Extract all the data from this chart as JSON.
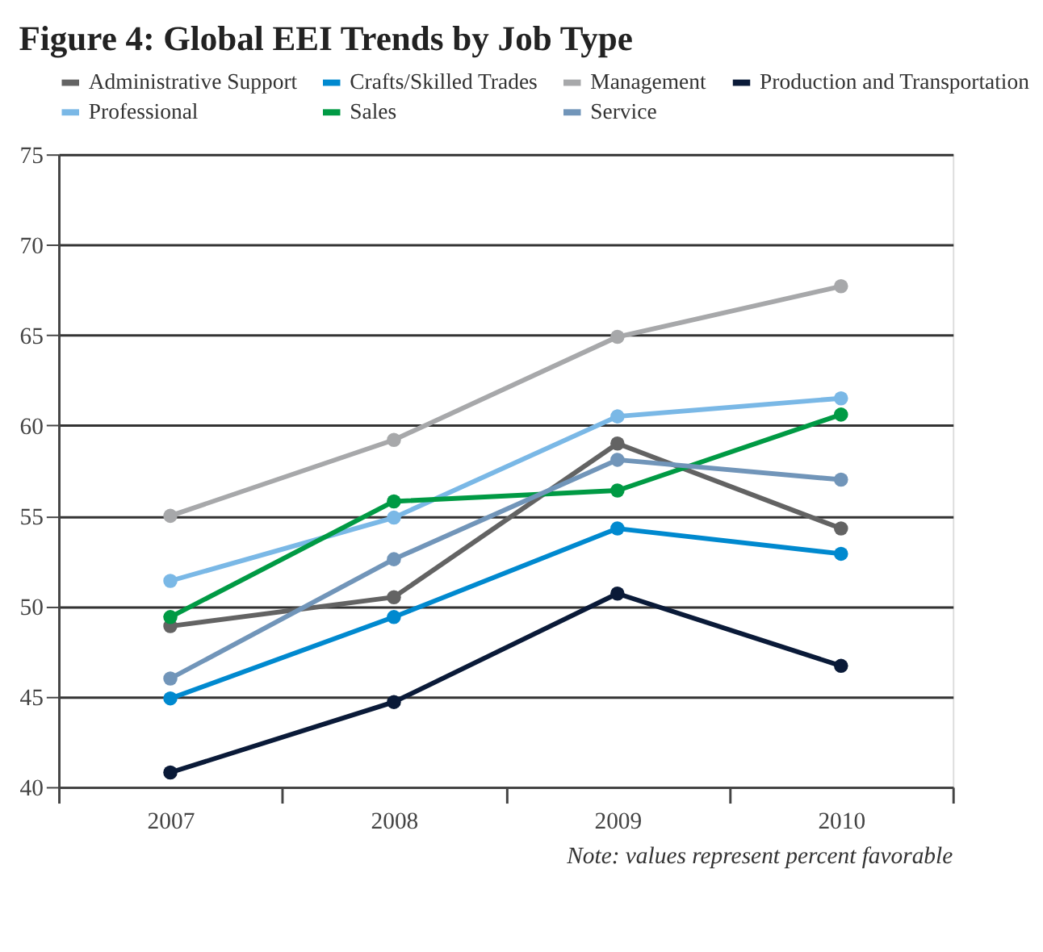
{
  "chart_data": {
    "type": "line",
    "title": "Figure 4: Global EEI Trends by Job Type",
    "categories": [
      "2007",
      "2008",
      "2009",
      "2010"
    ],
    "series": [
      {
        "name": "Administrative Support",
        "color": "#636363",
        "values": [
          48.9,
          50.5,
          59.0,
          54.3
        ]
      },
      {
        "name": "Crafts/Skilled Trades",
        "color": "#0089cf",
        "values": [
          44.9,
          49.4,
          54.3,
          52.9
        ]
      },
      {
        "name": "Management",
        "color": "#a7a8aa",
        "values": [
          55.0,
          59.2,
          64.9,
          67.7
        ]
      },
      {
        "name": "Production and Transportation",
        "color": "#0a1a38",
        "values": [
          40.8,
          44.7,
          50.7,
          46.7
        ]
      },
      {
        "name": "Professional",
        "color": "#7ab8e6",
        "values": [
          51.4,
          54.9,
          60.5,
          61.5
        ]
      },
      {
        "name": "Sales",
        "color": "#009a44",
        "values": [
          49.4,
          55.8,
          56.4,
          60.6
        ]
      },
      {
        "name": "Service",
        "color": "#7195b9",
        "values": [
          46.0,
          52.6,
          58.1,
          57.0
        ]
      }
    ],
    "ylim": [
      40,
      75
    ],
    "yticks": [
      40,
      45,
      50,
      55,
      60,
      65,
      70,
      75
    ],
    "grid": "y",
    "legend": "top",
    "marker": "circle",
    "line_style": "solid",
    "annotations": [
      "Note: values represent percent favorable"
    ]
  }
}
